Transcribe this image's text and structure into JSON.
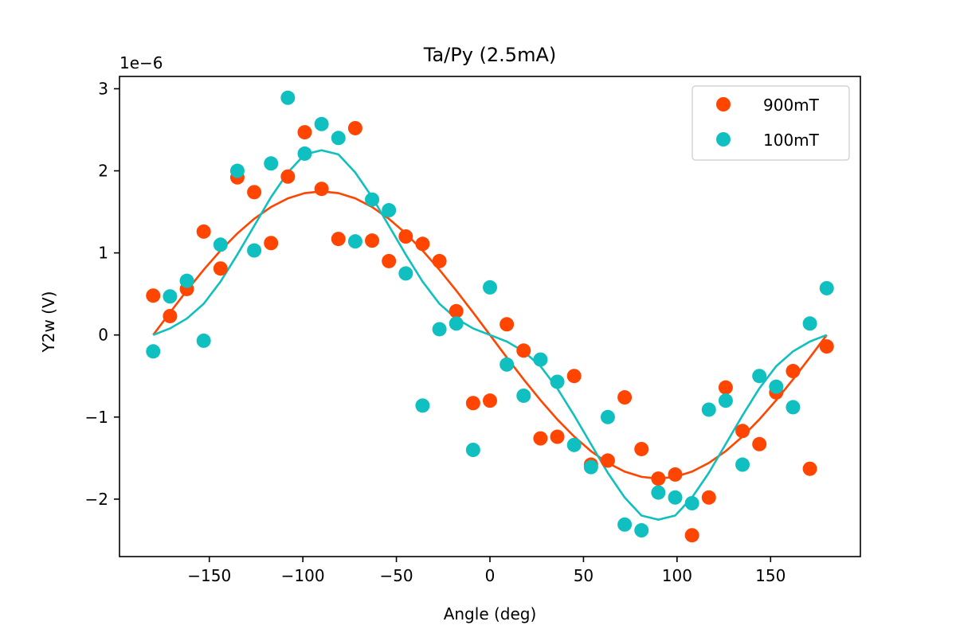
{
  "chart_data": {
    "type": "scatter",
    "title": "Ta/Py (2.5mA)",
    "xlabel": "Angle (deg)",
    "ylabel": "Y2w (V)",
    "y_scale_note": "1e−6",
    "xlim": [
      -198,
      198
    ],
    "ylim": [
      -2.7,
      3.15
    ],
    "x_ticks": [
      -150,
      -100,
      -50,
      0,
      50,
      100,
      150
    ],
    "x_tick_labels": [
      "−150",
      "−100",
      "−50",
      "0",
      "50",
      "100",
      "150"
    ],
    "y_ticks": [
      -2,
      -1,
      0,
      1,
      2,
      3
    ],
    "y_tick_labels": [
      "−2",
      "−1",
      "0",
      "1",
      "2",
      "3"
    ],
    "grid": false,
    "legend_position": "top-right",
    "series": [
      {
        "name": "900mT",
        "color": "#FF4500",
        "x": [
          -180,
          -171,
          -162,
          -153,
          -144,
          -135,
          -126,
          -117,
          -108,
          -99,
          -90,
          -81,
          -72,
          -63,
          -54,
          -45,
          -36,
          -27,
          -18,
          -9,
          0,
          9,
          18,
          27,
          36,
          45,
          54,
          63,
          72,
          81,
          90,
          99,
          108,
          117,
          126,
          135,
          144,
          153,
          162,
          171,
          180
        ],
        "y": [
          0.48,
          0.23,
          0.56,
          1.26,
          0.81,
          1.92,
          1.74,
          1.12,
          1.93,
          2.47,
          1.78,
          1.17,
          2.52,
          1.15,
          0.9,
          1.2,
          1.11,
          0.9,
          0.29,
          -0.83,
          -0.8,
          0.13,
          -0.19,
          -1.26,
          -1.24,
          -0.5,
          -1.58,
          -1.53,
          -0.76,
          -1.39,
          -1.75,
          -1.7,
          -2.44,
          -1.98,
          -0.64,
          -1.17,
          -1.33,
          -0.7,
          -0.44,
          -1.63,
          -0.14
        ],
        "fit_amplitude": 1.75
      },
      {
        "name": "100mT",
        "color": "#10BFBF",
        "x": [
          -180,
          -171,
          -162,
          -153,
          -144,
          -135,
          -126,
          -117,
          -108,
          -99,
          -90,
          -81,
          -72,
          -63,
          -54,
          -45,
          -36,
          -27,
          -18,
          -9,
          0,
          9,
          18,
          27,
          36,
          45,
          54,
          63,
          72,
          81,
          90,
          99,
          108,
          117,
          126,
          135,
          144,
          153,
          162,
          171,
          180
        ],
        "y": [
          -0.2,
          0.47,
          0.66,
          -0.07,
          1.1,
          2.0,
          1.03,
          2.09,
          2.89,
          2.21,
          2.57,
          2.4,
          1.14,
          1.65,
          1.52,
          0.75,
          -0.86,
          0.07,
          0.14,
          -1.4,
          0.58,
          -0.36,
          -0.74,
          -0.3,
          -0.57,
          -1.34,
          -1.61,
          -1.0,
          -2.31,
          -2.38,
          -1.92,
          -1.98,
          -2.05,
          -0.91,
          -0.8,
          -1.58,
          -0.5,
          -0.63,
          -0.88,
          0.14,
          0.57
        ],
        "fit_curve": [
          0,
          0.08,
          0.2,
          0.38,
          0.65,
          0.98,
          1.33,
          1.68,
          1.98,
          2.2,
          2.25,
          2.2,
          1.98,
          1.68,
          1.33,
          0.98,
          0.65,
          0.38,
          0.2,
          0.08,
          0,
          -0.08,
          -0.2,
          -0.38,
          -0.65,
          -0.98,
          -1.33,
          -1.68,
          -1.98,
          -2.2,
          -2.25,
          -2.2,
          -1.98,
          -1.68,
          -1.33,
          -0.98,
          -0.65,
          -0.38,
          -0.2,
          -0.08,
          0
        ]
      }
    ]
  }
}
